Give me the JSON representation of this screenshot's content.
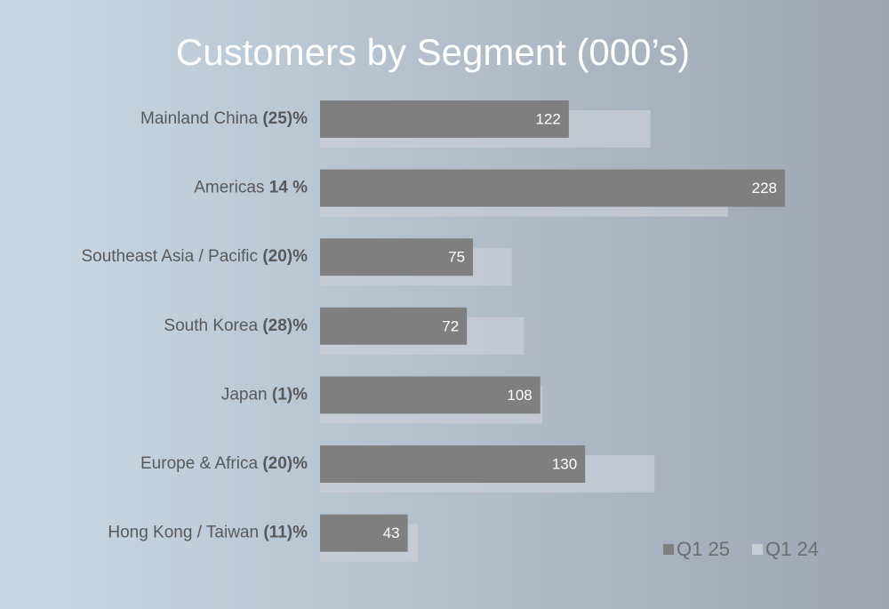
{
  "chart_data": {
    "type": "bar",
    "orientation": "horizontal",
    "title": "Customers by Segment (000’s)",
    "categories": [
      "Mainland China",
      "Americas",
      "Southeast Asia / Pacific",
      "South Korea",
      "Japan",
      "Europe & Africa",
      "Hong Kong / Taiwan"
    ],
    "changes": [
      "(25)%",
      "14 %",
      "(20)%",
      "(28)%",
      "(1)%",
      "(20)%",
      "(11)%"
    ],
    "series": [
      {
        "name": "Q1 25",
        "color": "#7f7f7f",
        "values": [
          122,
          228,
          75,
          72,
          108,
          130,
          43
        ]
      },
      {
        "name": "Q1 24",
        "color": "#c9ced6",
        "values": [
          162,
          200,
          94,
          100,
          109,
          164,
          48
        ]
      }
    ],
    "legend": "bottom-right"
  }
}
